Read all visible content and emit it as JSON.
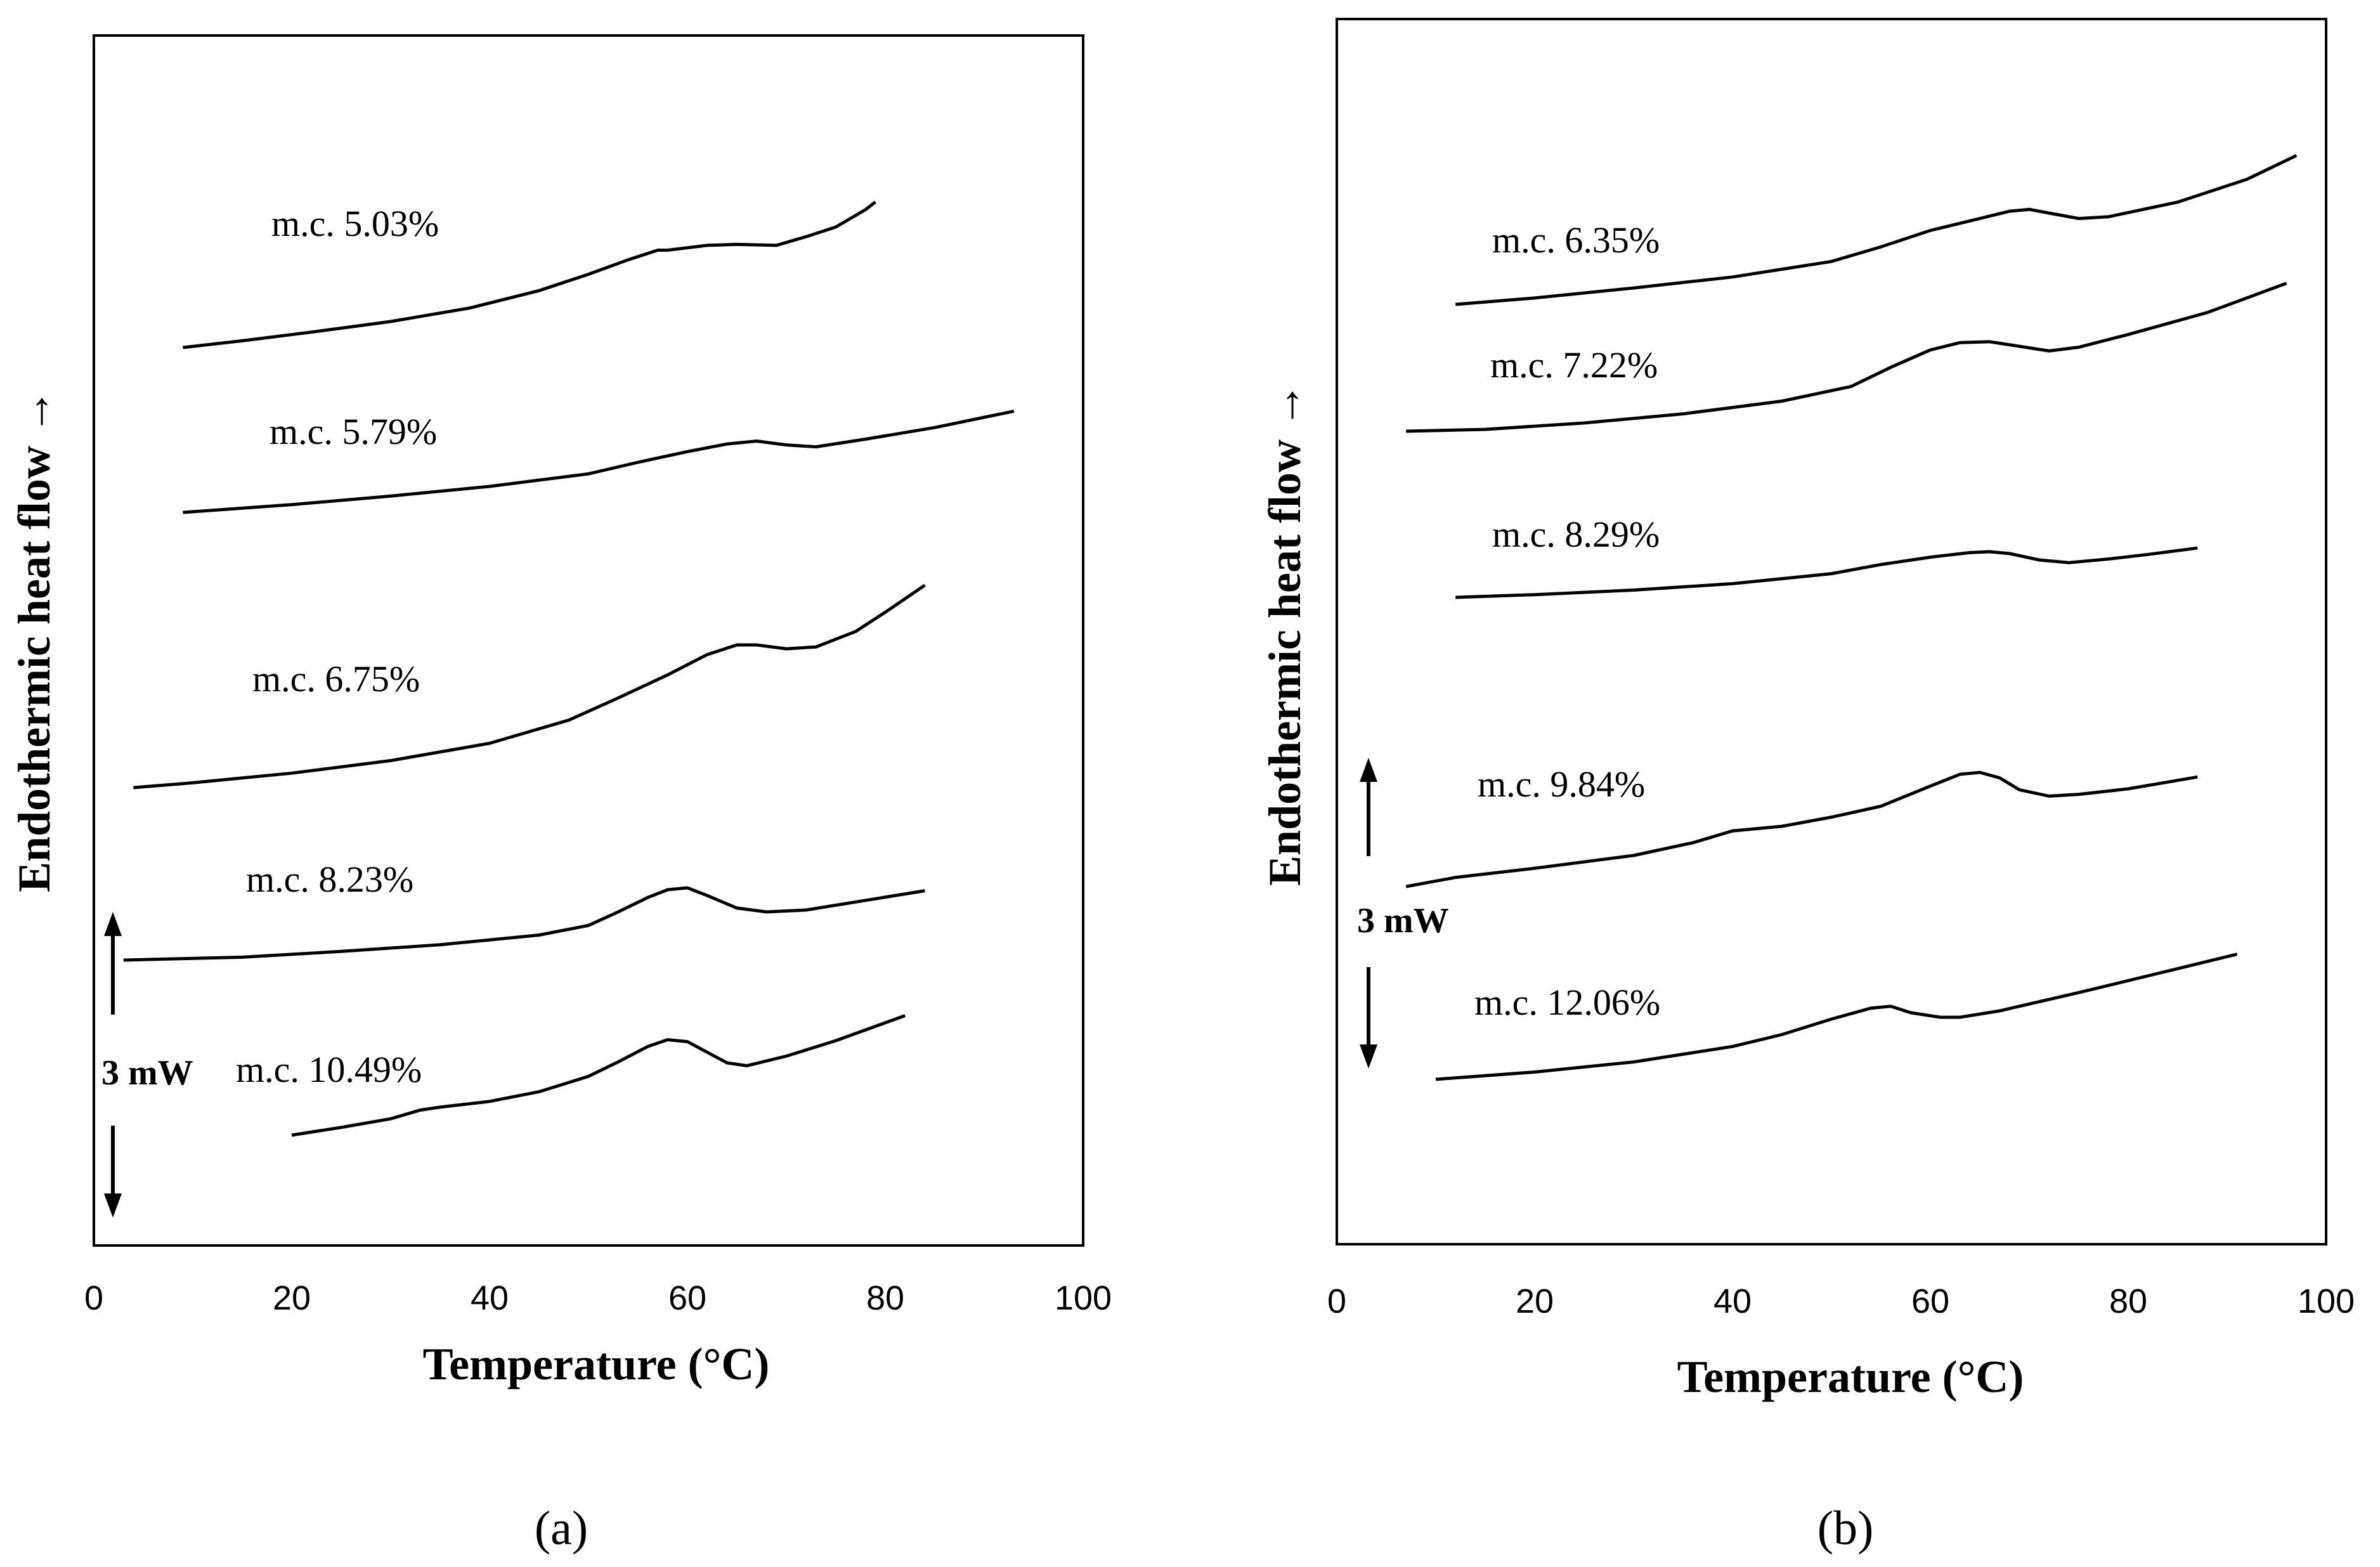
{
  "chart_data": [
    {
      "type": "line",
      "panel_label": "(a)",
      "xlabel": "Temperature (°C)",
      "ylabel": "Endothermic heat flow →",
      "xlim": [
        0,
        100
      ],
      "x_ticks": [
        "0",
        "20",
        "40",
        "60",
        "80",
        "100"
      ],
      "grid": false,
      "scale_bar": "3 mW",
      "series": [
        {
          "name": "m.c. 5.03%",
          "x": [
            9,
            15,
            22,
            30,
            38,
            45,
            50,
            54,
            57,
            58,
            62,
            65,
            69,
            72,
            75,
            78,
            79
          ],
          "y": [
            0,
            0.7,
            1.6,
            2.7,
            4.1,
            5.9,
            7.6,
            9.1,
            10.1,
            10.1,
            10.6,
            10.7,
            10.6,
            11.5,
            12.5,
            14.3,
            15.1
          ]
        },
        {
          "name": "m.c. 5.79%",
          "x": [
            9,
            20,
            30,
            40,
            50,
            55,
            60,
            64,
            67,
            70,
            73,
            78,
            85,
            93
          ],
          "y": [
            0,
            0.8,
            1.7,
            2.7,
            4.0,
            5.2,
            6.3,
            7.1,
            7.4,
            7.0,
            6.8,
            7.6,
            8.8,
            10.5
          ]
        },
        {
          "name": "m.c. 6.75%",
          "x": [
            4,
            10,
            20,
            30,
            40,
            48,
            53,
            58,
            62,
            65,
            67,
            70,
            73,
            77,
            80,
            84
          ],
          "y": [
            0,
            0.5,
            1.5,
            2.8,
            4.6,
            7.0,
            9.3,
            11.7,
            13.8,
            14.8,
            14.8,
            14.4,
            14.6,
            16.2,
            18.2,
            21.0
          ]
        },
        {
          "name": "m.c. 8.23%",
          "x": [
            3,
            15,
            25,
            35,
            45,
            50,
            53,
            56,
            58,
            60,
            62,
            65,
            68,
            72,
            78,
            84
          ],
          "y": [
            0,
            0.3,
            0.9,
            1.6,
            2.6,
            3.6,
            5.0,
            6.5,
            7.3,
            7.5,
            6.7,
            5.4,
            5.0,
            5.2,
            6.2,
            7.2
          ]
        },
        {
          "name": "m.c. 10.49%",
          "x": [
            20,
            25,
            30,
            33,
            35,
            40,
            45,
            50,
            53,
            56,
            58,
            60,
            62,
            64,
            66,
            70,
            75,
            82
          ],
          "y": [
            0,
            0.8,
            1.7,
            2.6,
            2.9,
            3.5,
            4.5,
            6.1,
            7.6,
            9.2,
            9.9,
            9.7,
            8.6,
            7.5,
            7.2,
            8.2,
            9.8,
            12.4
          ]
        }
      ],
      "curve_labels": [
        "m.c. 5.03%",
        "m.c. 5.79%",
        "m.c. 6.75%",
        "m.c. 8.23%",
        "m.c. 10.49%"
      ]
    },
    {
      "type": "line",
      "panel_label": "(b)",
      "xlabel": "Temperature (°C)",
      "ylabel": "Endothermic heat flow →",
      "xlim": [
        0,
        100
      ],
      "x_ticks": [
        "0",
        "20",
        "40",
        "60",
        "80",
        "100"
      ],
      "grid": false,
      "scale_bar": "3 mW",
      "series": [
        {
          "name": "m.c. 6.35%",
          "x": [
            12,
            20,
            30,
            40,
            50,
            55,
            60,
            65,
            68,
            70,
            72,
            75,
            78,
            85,
            92,
            97
          ],
          "y": [
            0,
            0.7,
            1.8,
            3.0,
            4.7,
            6.3,
            8.1,
            9.4,
            10.2,
            10.4,
            10.0,
            9.4,
            9.6,
            11.2,
            13.7,
            16.3
          ]
        },
        {
          "name": "m.c. 7.22%",
          "x": [
            7,
            15,
            25,
            35,
            45,
            52,
            56,
            60,
            63,
            66,
            69,
            72,
            75,
            80,
            88,
            96
          ],
          "y": [
            0,
            0.2,
            0.9,
            1.9,
            3.3,
            4.9,
            7.0,
            8.9,
            9.7,
            9.8,
            9.3,
            8.8,
            9.2,
            10.6,
            13.0,
            16.2
          ]
        },
        {
          "name": "m.c. 8.29%",
          "x": [
            12,
            20,
            30,
            40,
            50,
            55,
            60,
            64,
            66,
            68,
            71,
            74,
            78,
            82,
            87
          ],
          "y": [
            0,
            0.3,
            0.8,
            1.5,
            2.6,
            3.6,
            4.4,
            4.9,
            5.0,
            4.8,
            4.1,
            3.8,
            4.2,
            4.7,
            5.4
          ]
        },
        {
          "name": "m.c. 9.84%",
          "x": [
            7,
            12,
            20,
            30,
            36,
            40,
            45,
            50,
            55,
            60,
            63,
            65,
            67,
            69,
            72,
            75,
            80,
            87
          ],
          "y": [
            0,
            1.0,
            2.0,
            3.4,
            4.8,
            6.1,
            6.6,
            7.6,
            8.8,
            11.0,
            12.3,
            12.5,
            11.9,
            10.6,
            9.9,
            10.1,
            10.7,
            12.0
          ]
        },
        {
          "name": "m.c. 12.06%",
          "x": [
            10,
            20,
            30,
            40,
            45,
            50,
            54,
            56,
            58,
            61,
            63,
            67,
            75,
            83,
            91
          ],
          "y": [
            0,
            0.8,
            1.9,
            3.6,
            4.9,
            6.6,
            7.8,
            8.0,
            7.3,
            6.8,
            6.8,
            7.5,
            9.5,
            11.6,
            13.7
          ]
        }
      ],
      "curve_labels": [
        "m.c. 6.35%",
        "m.c. 7.22%",
        "m.c. 8.29%",
        "m.c. 9.84%",
        "m.c. 12.06%"
      ]
    }
  ]
}
